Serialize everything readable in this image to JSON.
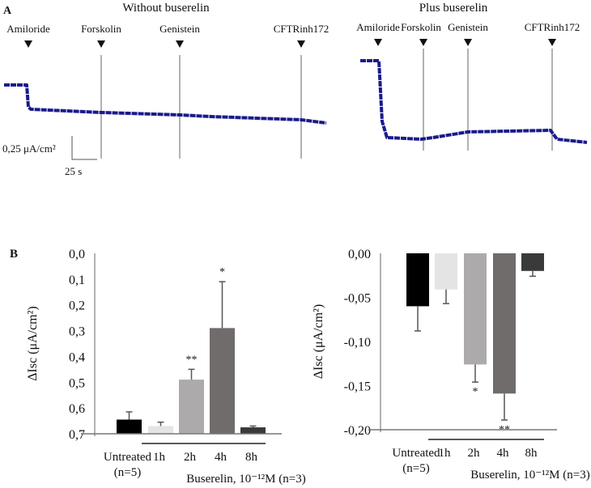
{
  "panel_a": {
    "label": "A",
    "left": {
      "title": "Without buserelin",
      "markers": [
        "Amiloride",
        "Forskolin",
        "Genistein",
        "CFTRinh172"
      ]
    },
    "right": {
      "title": "Plus buserelin",
      "markers": [
        "Amiloride",
        "Forskolin",
        "Genistein",
        "CFTRinh172"
      ]
    },
    "scale_y": "0,25 μA/cm²",
    "scale_x": "25 s",
    "trace_color": "#1a1a8c"
  },
  "panel_b": {
    "label": "B"
  },
  "chart_data": [
    {
      "type": "bar",
      "title": "Without buserelin",
      "categories": [
        "Untreated",
        "1h",
        "2h",
        "4h",
        "8h"
      ],
      "values": [
        0.055,
        0.03,
        0.21,
        0.41,
        0.025
      ],
      "error": [
        0.03,
        0.015,
        0.04,
        0.18,
        0.005
      ],
      "significance": [
        "",
        "",
        "**",
        "*",
        ""
      ],
      "colors": [
        "#000000",
        "#e4e4e4",
        "#acaaaa",
        "#706c6c",
        "#3a3a3a"
      ],
      "ylabel": "ΔIsc (μA/cm²)",
      "ylim": [
        0,
        0.7
      ],
      "yticks": [
        "0,0",
        "0,1",
        "0,2",
        "0,3",
        "0,4",
        "0,5",
        "0,6",
        "0,7"
      ],
      "xlabel_untreated": "Untreated",
      "xlabel_n5": "(n=5)",
      "group_label": "Buserelin, 10⁻¹²M (n=3)"
    },
    {
      "type": "bar",
      "title": "Plus buserelin",
      "categories": [
        "Untreated",
        "1h",
        "2h",
        "4h",
        "8h"
      ],
      "values": [
        -0.06,
        -0.041,
        -0.126,
        -0.159,
        -0.02
      ],
      "error": [
        0.028,
        0.016,
        0.02,
        0.03,
        0.006
      ],
      "significance": [
        "",
        "",
        "*",
        "**",
        ""
      ],
      "colors": [
        "#000000",
        "#e4e4e4",
        "#acaaaa",
        "#706c6c",
        "#3a3a3a"
      ],
      "ylabel": "ΔIsc (μA/cm²)",
      "ylim": [
        -0.2,
        0
      ],
      "yticks": [
        "0,00",
        "-0,05",
        "-0,10",
        "-0,15",
        "-0,20"
      ],
      "xlabel_untreated": "Untreated",
      "xlabel_n5": "(n=5)",
      "group_label": "Buserelin, 10⁻¹²M (n=3)"
    }
  ]
}
